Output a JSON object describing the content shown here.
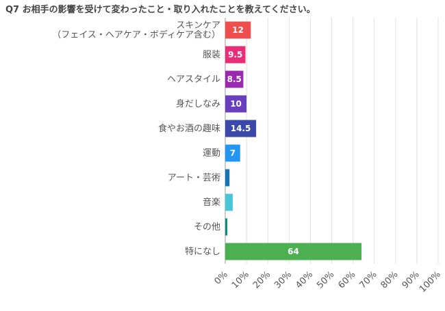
{
  "chart_data": {
    "type": "bar",
    "orientation": "horizontal",
    "title": "Q7 お相手の影響を受けて変わったこと・取り入れたことを教えてください。",
    "xlabel": "",
    "ylabel": "",
    "xlim": [
      0,
      100
    ],
    "tick_labels": [
      "0%",
      "10%",
      "20%",
      "30%",
      "40%",
      "50%",
      "60%",
      "70%",
      "80%",
      "90%",
      "100%"
    ],
    "grid": true,
    "legend": "none",
    "categories": [
      [
        "スキンケア",
        "（フェイス・ヘアケア・ボディケア含む）"
      ],
      [
        "服装"
      ],
      [
        "ヘアスタイル"
      ],
      [
        "身だしなみ"
      ],
      [
        "食やお酒の趣味"
      ],
      [
        "運動"
      ],
      [
        "アート・芸術"
      ],
      [
        "音楽"
      ],
      [
        "その他"
      ],
      [
        "特になし"
      ]
    ],
    "values": [
      12,
      9.5,
      8.5,
      10,
      14.5,
      7,
      2,
      3.5,
      1,
      64
    ],
    "data_labels": [
      "12",
      "9.5",
      "8.5",
      "10",
      "14.5",
      "7",
      "",
      "",
      "",
      "64"
    ],
    "colors": [
      "#ef4e4e",
      "#e62f76",
      "#9c27b0",
      "#6a3fbf",
      "#3b4aa8",
      "#2196f3",
      "#1273b5",
      "#46c4d8",
      "#14897d",
      "#4caf50"
    ]
  }
}
